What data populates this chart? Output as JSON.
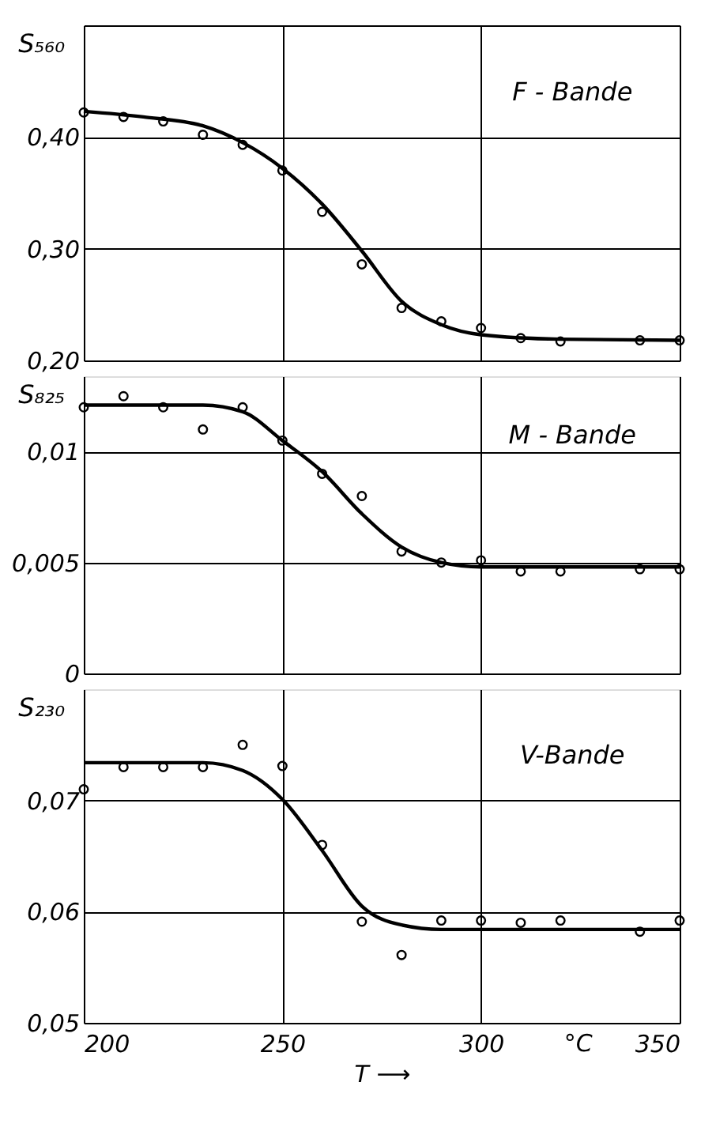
{
  "chart_data": [
    {
      "type": "scatter",
      "ylabel": "S₅₆₀",
      "annotations": [
        "F - Bande"
      ],
      "grid": true,
      "marker": "circle",
      "tick_labels": "y",
      "xlim": [
        200,
        350
      ],
      "xticks": [
        200,
        250,
        300,
        350
      ],
      "ylim": [
        0.2,
        0.5
      ],
      "yticks": [
        {
          "value": 0.2,
          "label": "0,20"
        },
        {
          "value": 0.3,
          "label": "0,30"
        },
        {
          "value": 0.4,
          "label": "0,40"
        },
        {
          "value": 0.5,
          "label": null
        }
      ],
      "series": [
        {
          "color": "#000000",
          "x": [
            200,
            210,
            220,
            230,
            240,
            250,
            260,
            270,
            280,
            290,
            300,
            310,
            320,
            340,
            350
          ],
          "values": [
            0.422,
            0.418,
            0.414,
            0.402,
            0.393,
            0.37,
            0.333,
            0.286,
            0.247,
            0.235,
            0.229,
            0.22,
            0.217,
            0.218,
            0.218
          ]
        },
        {
          "type": "line",
          "marker": "none",
          "color": "#000000",
          "x": [
            200,
            215,
            230,
            240,
            250,
            260,
            270,
            280,
            290,
            300,
            320,
            350
          ],
          "values": [
            0.423,
            0.418,
            0.41,
            0.395,
            0.372,
            0.34,
            0.298,
            0.253,
            0.232,
            0.223,
            0.219,
            0.218
          ]
        }
      ]
    },
    {
      "type": "scatter",
      "ylabel": "S₈₂₅",
      "annotations": [
        "M - Bande"
      ],
      "grid": true,
      "marker": "circle",
      "tick_labels": "y",
      "xlim": [
        200,
        350
      ],
      "xticks": [
        200,
        250,
        300,
        350
      ],
      "ylim": [
        0,
        0.0134
      ],
      "yticks": [
        {
          "value": 0,
          "label": "0"
        },
        {
          "value": 0.005,
          "label": "0,005"
        },
        {
          "value": 0.01,
          "label": "0,01"
        }
      ],
      "series": [
        {
          "color": "#000000",
          "x": [
            200,
            210,
            220,
            230,
            240,
            250,
            260,
            270,
            280,
            290,
            300,
            310,
            320,
            340,
            350
          ],
          "values": [
            0.012,
            0.0125,
            0.012,
            0.011,
            0.012,
            0.0105,
            0.009,
            0.008,
            0.0055,
            0.005,
            0.0051,
            0.0046,
            0.0046,
            0.0047,
            0.0047
          ]
        },
        {
          "type": "line",
          "marker": "none",
          "color": "#000000",
          "x": [
            200,
            215,
            230,
            240,
            250,
            260,
            270,
            280,
            290,
            300,
            320,
            350
          ],
          "values": [
            0.0121,
            0.0121,
            0.0121,
            0.0118,
            0.0105,
            0.0091,
            0.0072,
            0.0057,
            0.005,
            0.0048,
            0.0048,
            0.0048
          ]
        }
      ]
    },
    {
      "type": "scatter",
      "ylabel": "S₂₃₀",
      "xlabel": "T ⟶",
      "annotations": [
        "V-Bande",
        "°C"
      ],
      "grid": true,
      "marker": "circle",
      "xlim": [
        200,
        350
      ],
      "xticks": [
        200,
        250,
        300,
        350
      ],
      "ylim": [
        0.05,
        0.08
      ],
      "yticks": [
        {
          "value": 0.05,
          "label": "0,05"
        },
        {
          "value": 0.06,
          "label": "0,06"
        },
        {
          "value": 0.07,
          "label": "0,07"
        }
      ],
      "series": [
        {
          "color": "#000000",
          "x": [
            200,
            210,
            220,
            230,
            240,
            250,
            260,
            270,
            280,
            290,
            300,
            310,
            320,
            340,
            350
          ],
          "values": [
            0.071,
            0.073,
            0.073,
            0.073,
            0.075,
            0.0731,
            0.066,
            0.0591,
            0.0561,
            0.0592,
            0.0592,
            0.059,
            0.0592,
            0.0582,
            0.0592
          ]
        },
        {
          "type": "line",
          "marker": "none",
          "color": "#000000",
          "x": [
            200,
            215,
            230,
            240,
            250,
            260,
            270,
            280,
            290,
            300,
            320,
            350
          ],
          "values": [
            0.0734,
            0.0734,
            0.0734,
            0.0727,
            0.0701,
            0.0655,
            0.0605,
            0.0588,
            0.0584,
            0.0584,
            0.0584,
            0.0584
          ]
        }
      ]
    }
  ]
}
